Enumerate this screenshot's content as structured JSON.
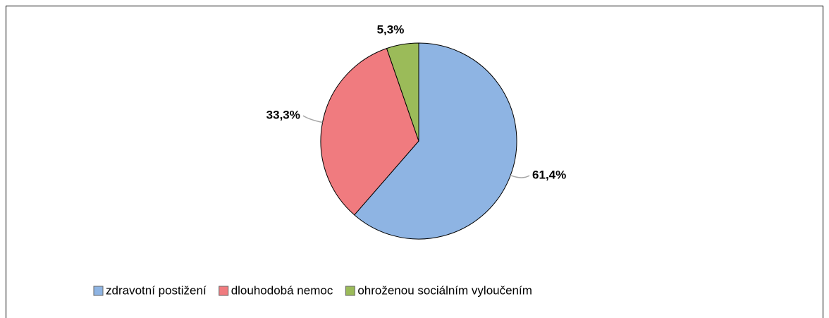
{
  "chart_data": {
    "type": "pie",
    "categories": [
      "zdravotní postižení",
      "dlouhodobá nemoc",
      "ohroženou sociálním vyloučením"
    ],
    "values": [
      61.4,
      33.3,
      5.3
    ],
    "value_labels": [
      "61,4%",
      "33,3%",
      "5,3%"
    ],
    "colors": [
      "#8EB4E3",
      "#F07B7F",
      "#9BBB59"
    ],
    "legend": "bottom"
  }
}
